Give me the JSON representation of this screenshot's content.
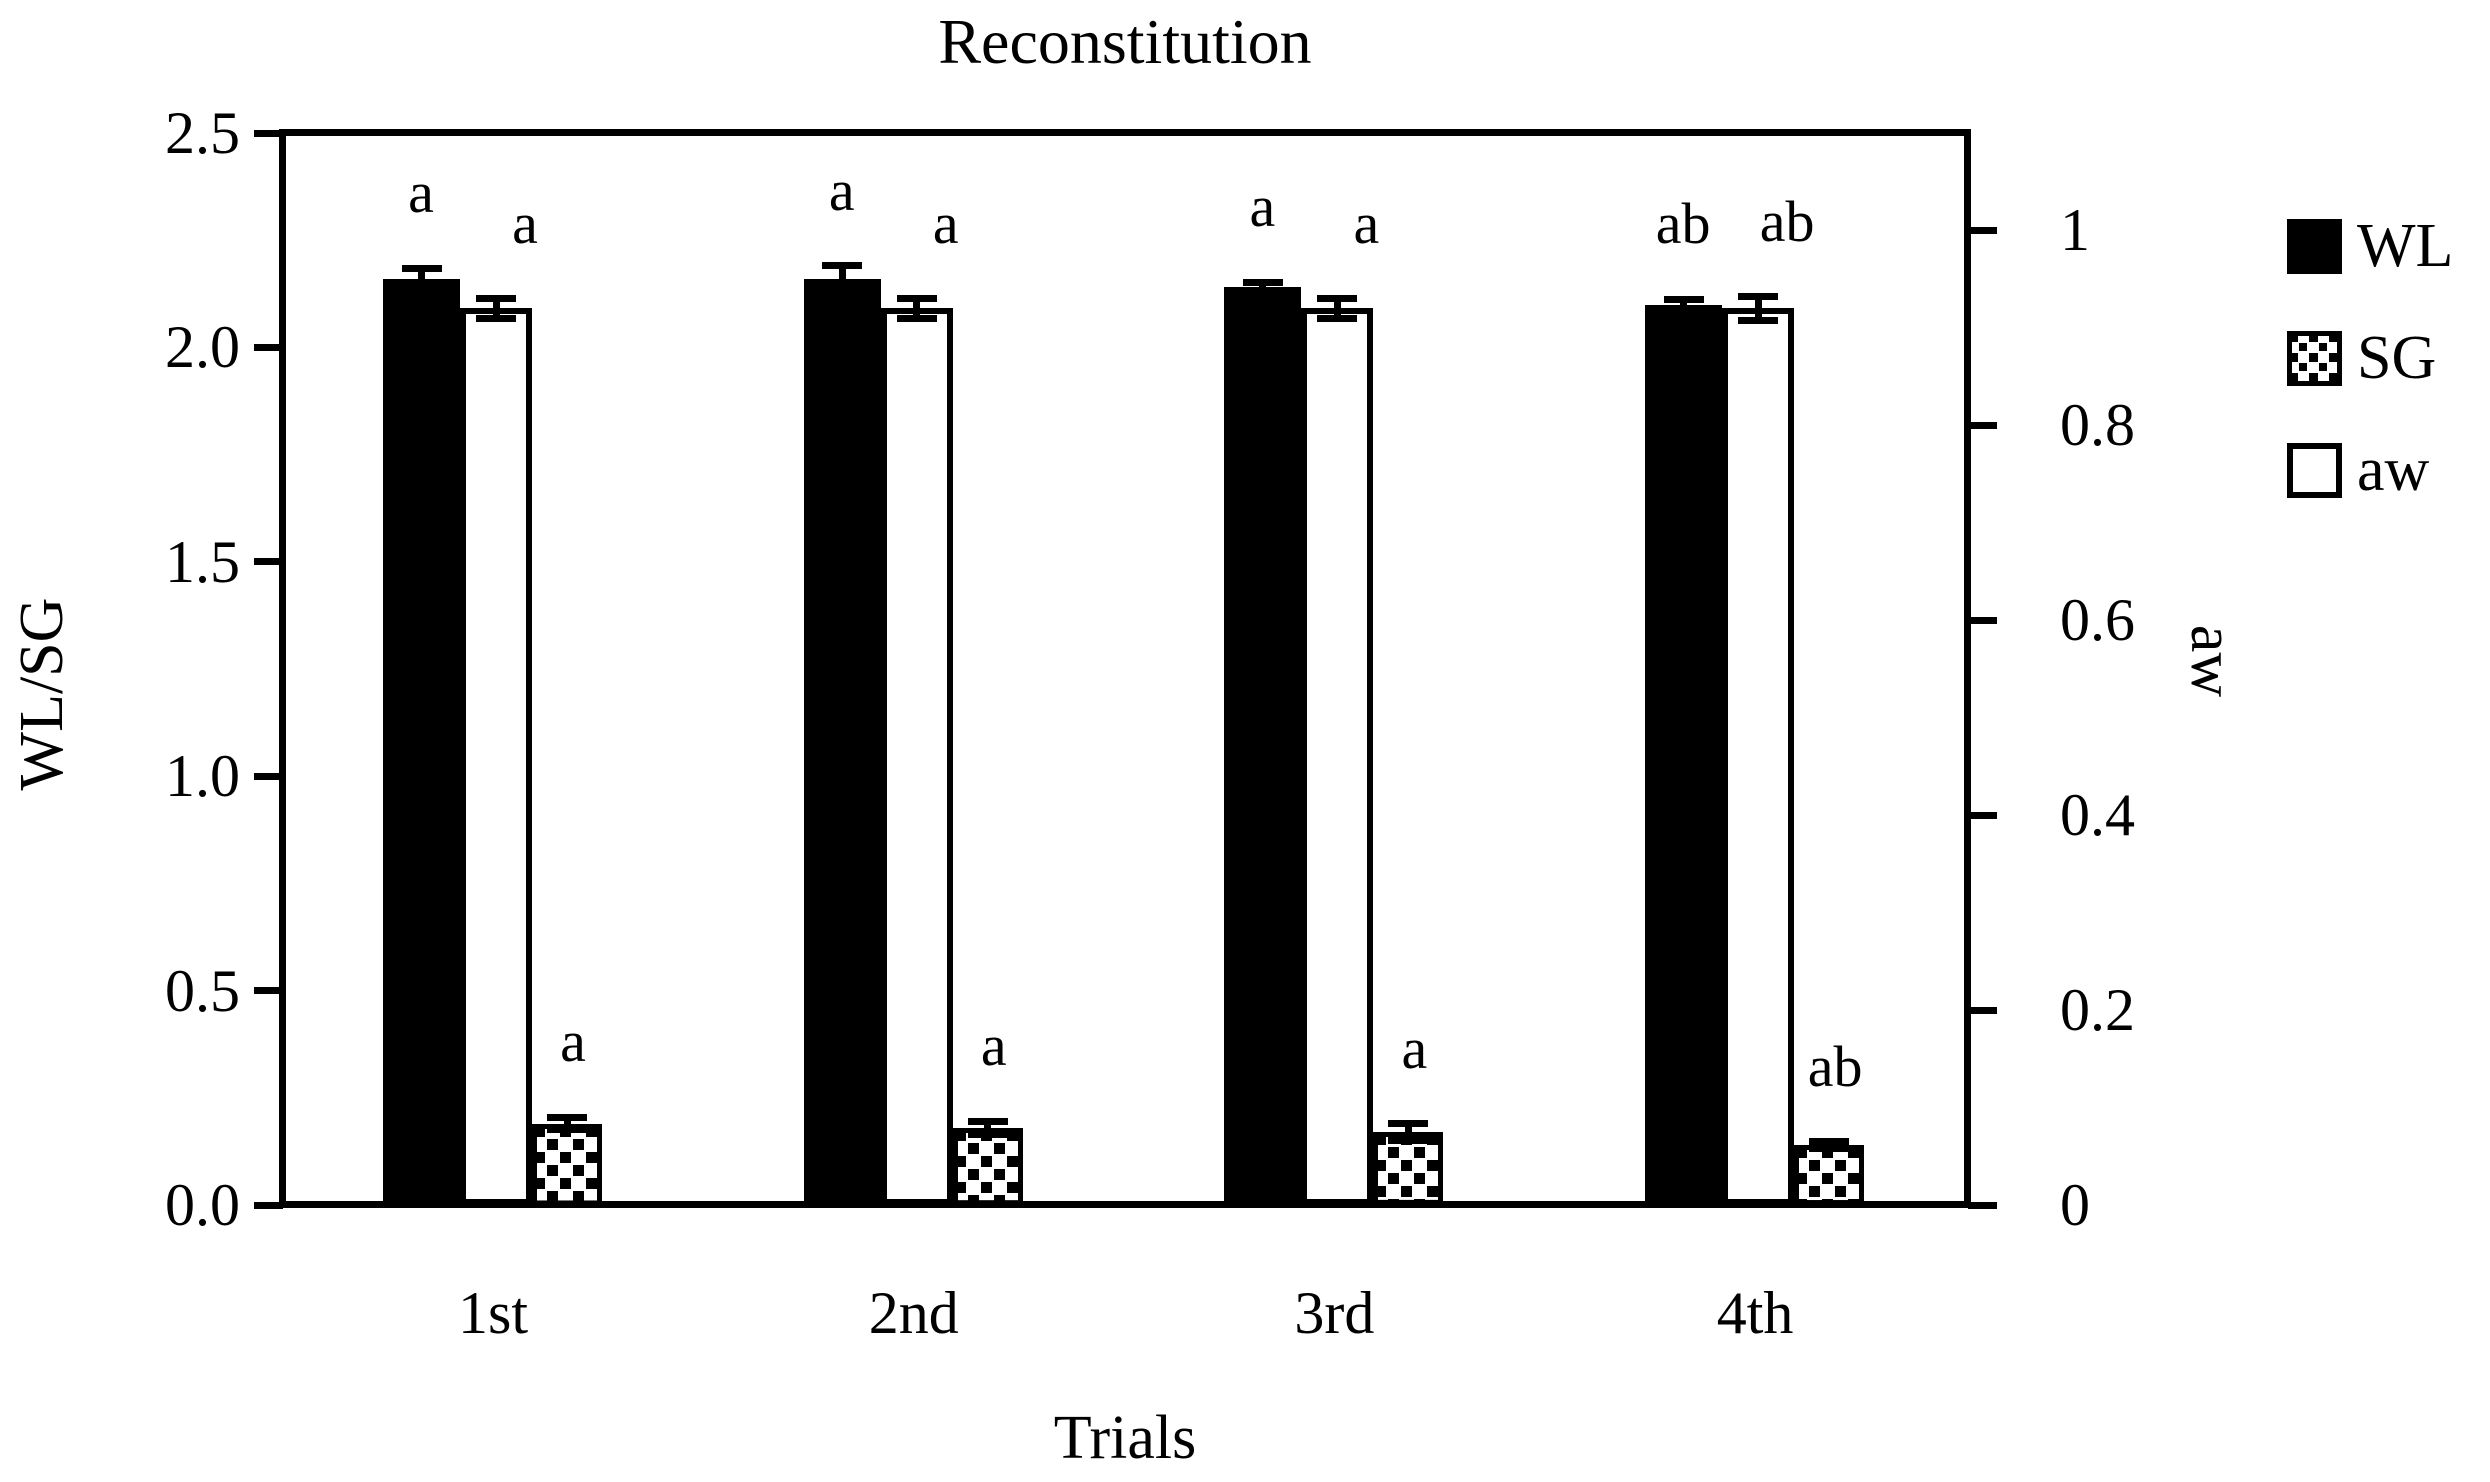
{
  "title": "Reconstitution",
  "axes": {
    "left": {
      "title": "WL/SG",
      "tick_labels": [
        "2.5",
        "2.0",
        "1.5",
        "1.0",
        "0.5",
        "0.0"
      ],
      "tick_values": [
        2.5,
        2.0,
        1.5,
        1.0,
        0.5,
        0.0
      ],
      "max": 2.5
    },
    "right": {
      "title": "aw",
      "tick_labels": [
        "1",
        "0.8",
        "0.6",
        "0.4",
        "0.2",
        "0"
      ],
      "tick_values": [
        1,
        0.8,
        0.6,
        0.4,
        0.2,
        0
      ],
      "max": 1.1
    },
    "x": {
      "title": "Trials",
      "categories": [
        "1st",
        "2nd",
        "3rd",
        "4th"
      ]
    }
  },
  "legend": [
    {
      "label": "WL",
      "swatch": "solid-black-square"
    },
    {
      "label": "SG",
      "swatch": "checkered-square"
    },
    {
      "label": "aw",
      "swatch": "open-white-square"
    }
  ],
  "chart_data": {
    "type": "bar",
    "title": "Reconstitution",
    "xlabel": "Trials",
    "ylabel_left": "WL/SG",
    "ylabel_right": "aw",
    "categories": [
      "1st",
      "2nd",
      "3rd",
      "4th"
    ],
    "ylim_left": [
      0,
      2.5
    ],
    "ylim_right": [
      0,
      1.1
    ],
    "grid": false,
    "legend_position": "right",
    "series": [
      {
        "name": "WL",
        "axis": "left",
        "style": "solid-black",
        "values": [
          2.16,
          2.16,
          2.14,
          2.1
        ],
        "errors": [
          0.025,
          0.03,
          0.012,
          0.012
        ],
        "letters": [
          "a",
          "a",
          "a",
          "ab"
        ]
      },
      {
        "name": "aw",
        "axis": "right",
        "style": "open-white",
        "values": [
          0.92,
          0.92,
          0.92,
          0.92
        ],
        "errors": [
          0.01,
          0.01,
          0.01,
          0.012
        ],
        "letters": [
          "a",
          "a",
          "a",
          "ab"
        ]
      },
      {
        "name": "SG",
        "axis": "left",
        "style": "checkered",
        "values": [
          0.19,
          0.18,
          0.17,
          0.14
        ],
        "errors": [
          0.015,
          0.015,
          0.02,
          0.008
        ],
        "letters": [
          "a",
          "a",
          "a",
          "ab"
        ]
      }
    ]
  }
}
